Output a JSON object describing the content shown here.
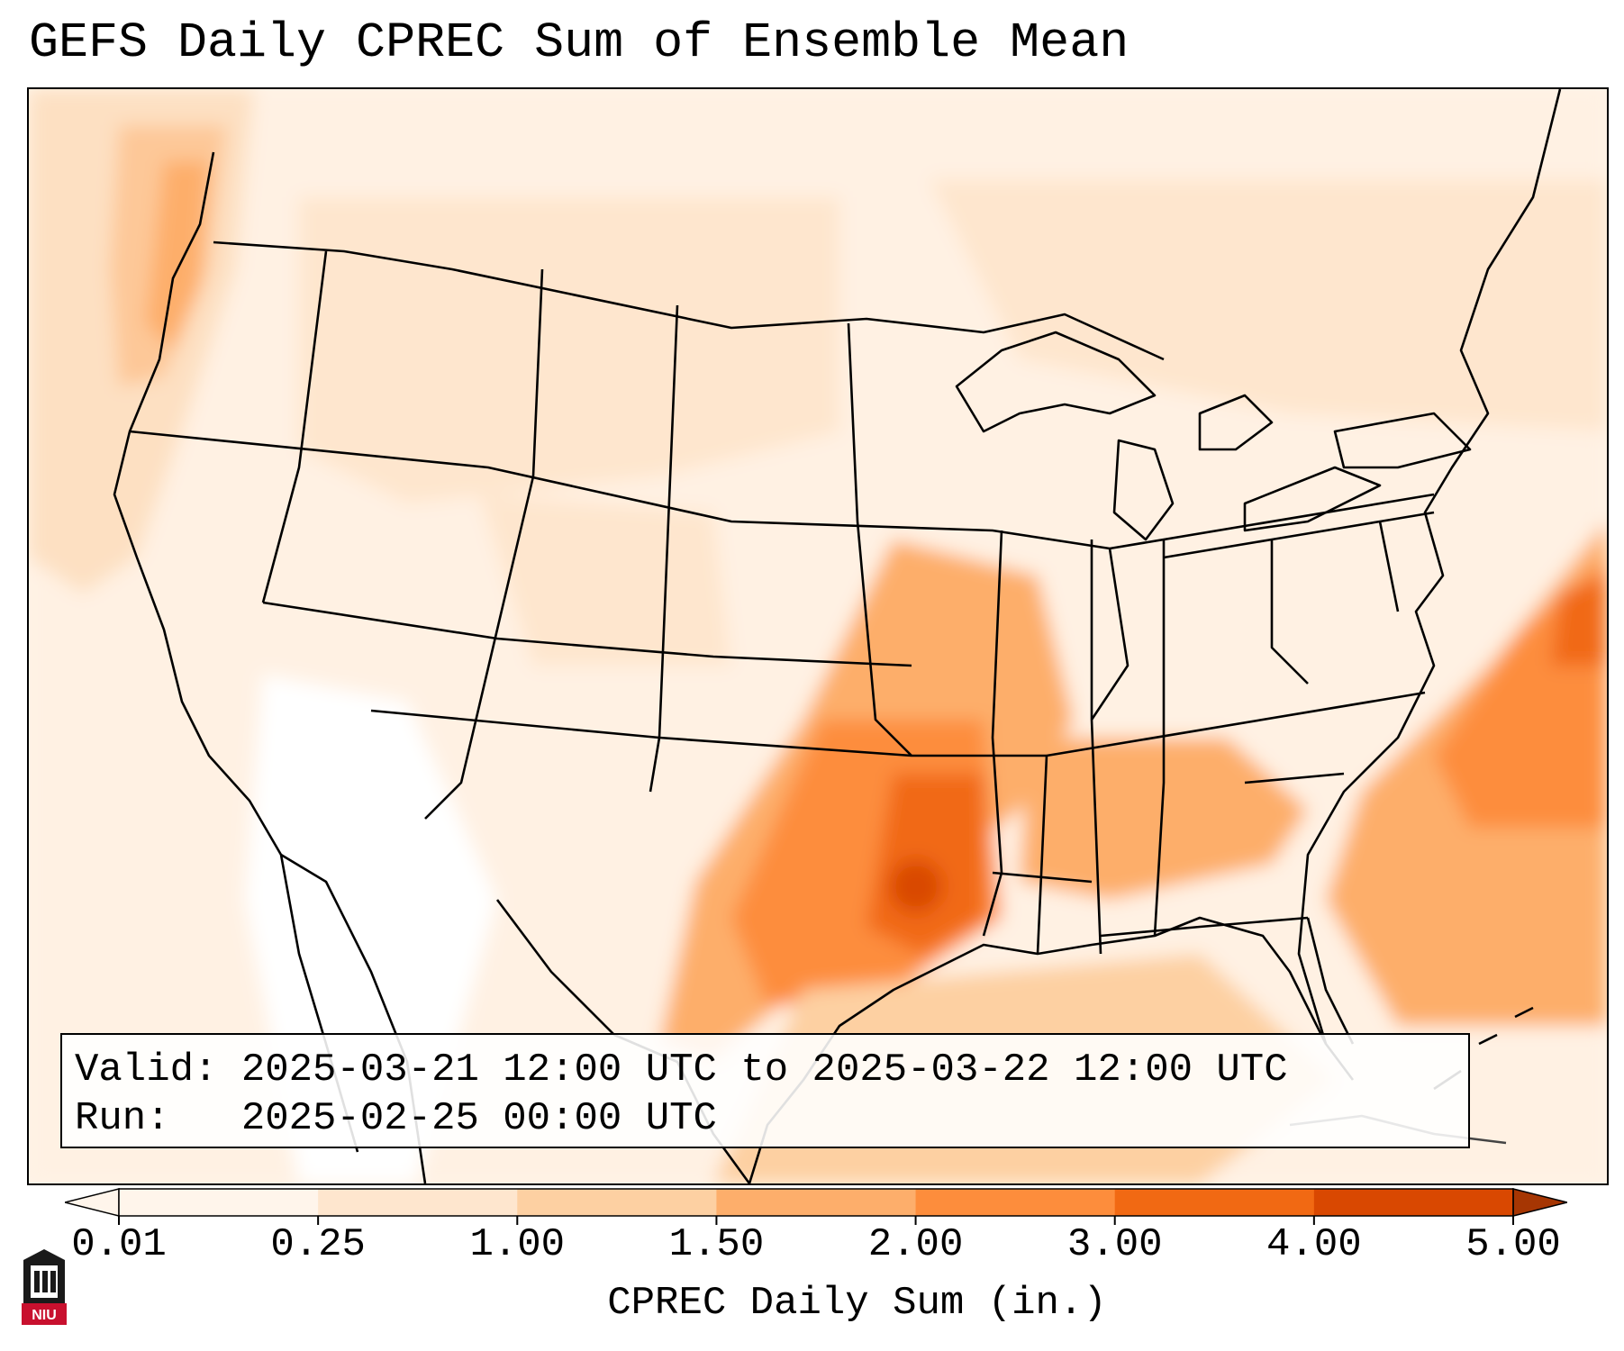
{
  "title": "GEFS Daily CPREC Sum of Ensemble Mean",
  "info": {
    "valid_line": "Valid: 2025-03-21 12:00 UTC to 2025-03-22 12:00 UTC",
    "run_line": "Run:   2025-02-25 00:00 UTC"
  },
  "colorbar": {
    "label": "CPREC Daily Sum (in.)",
    "ticks": [
      "0.01",
      "0.25",
      "1.00",
      "1.50",
      "2.00",
      "3.00",
      "4.00",
      "5.00"
    ],
    "colors": [
      "#fff5eb",
      "#fee6ce",
      "#fdd0a2",
      "#fdae6b",
      "#fd8d3c",
      "#f16913",
      "#d94801",
      "#a63603"
    ],
    "extend": "both"
  },
  "logo": {
    "text": "NIU",
    "color": "#c8102e"
  },
  "map": {
    "region": "Contiguous United States",
    "max_area": "Louisiana / Arkansas border"
  }
}
